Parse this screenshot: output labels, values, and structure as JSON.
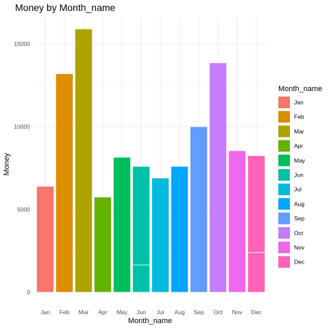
{
  "chart_data": {
    "type": "bar",
    "title": "Money by Month_name",
    "xlabel": "Month_name",
    "ylabel": "Money",
    "categories": [
      "Jan",
      "Feb",
      "Mar",
      "Apr",
      "May",
      "Jun",
      "Jul",
      "Aug",
      "Sep",
      "Oct",
      "Nov",
      "Dec"
    ],
    "values": [
      6400,
      13200,
      15900,
      5750,
      8150,
      7600,
      6900,
      7600,
      10000,
      13850,
      8550,
      8250
    ],
    "segments": [
      {
        "month": "Jun",
        "values": [
          1650,
          5950
        ]
      },
      {
        "month": "Dec",
        "values": [
          2400,
          5850
        ]
      }
    ],
    "colors": [
      "#F8766D",
      "#DB8E00",
      "#AEA200",
      "#64B200",
      "#00BD5C",
      "#00C1A7",
      "#00BADE",
      "#00A6FF",
      "#619CFF",
      "#C77CFF",
      "#EF67EB",
      "#FF63B6"
    ],
    "y_ticks": [
      0,
      5000,
      10000,
      15000
    ],
    "ylim": [
      0,
      16500
    ],
    "grid": true,
    "legend": {
      "title": "Month_name",
      "placement": "right",
      "items": [
        "Jan",
        "Feb",
        "Mar",
        "Apr",
        "May",
        "Jun",
        "Jul",
        "Aug",
        "Sep",
        "Oct",
        "Nov",
        "Dec"
      ]
    }
  }
}
